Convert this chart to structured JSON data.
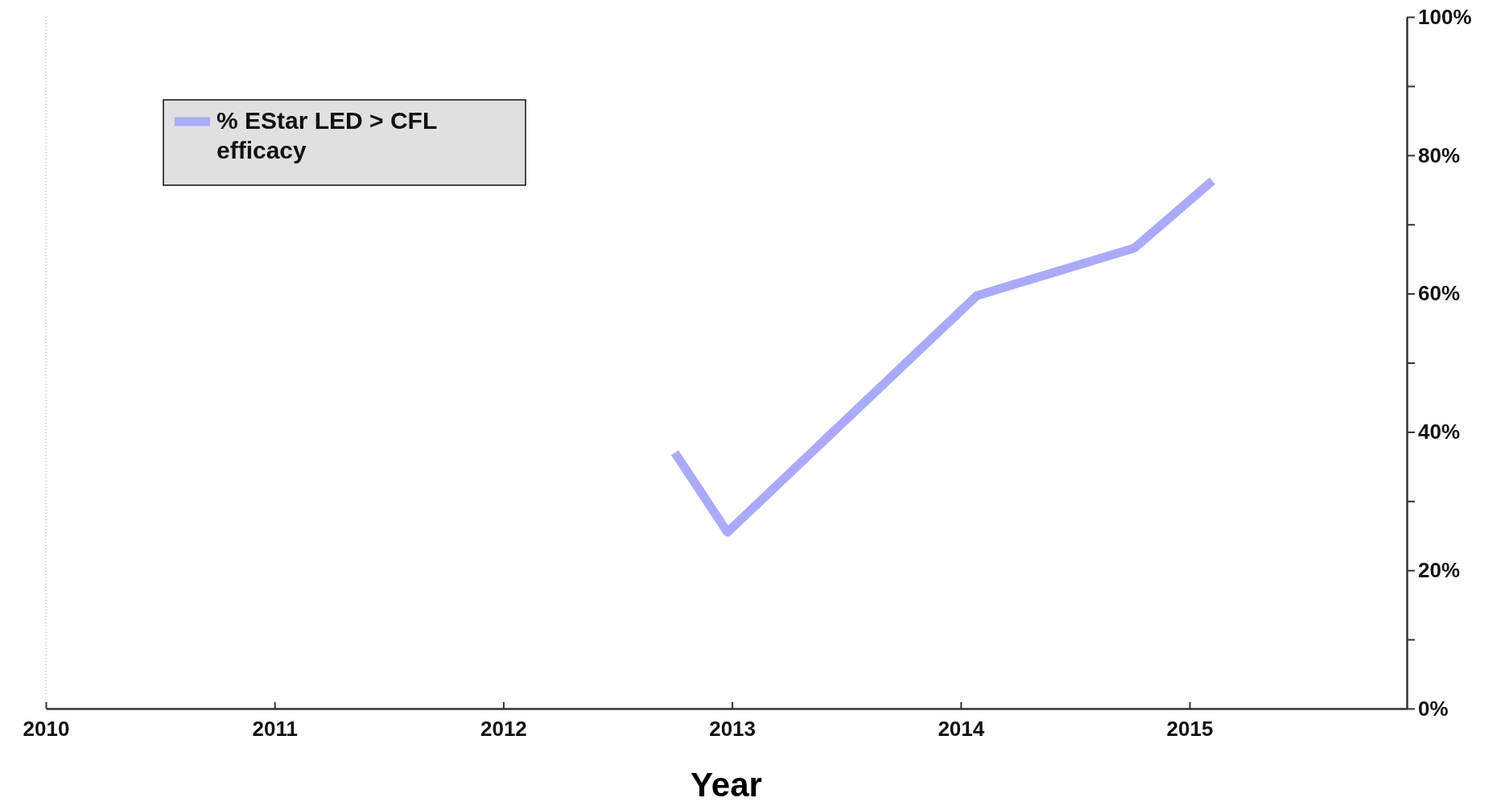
{
  "chart_data": {
    "type": "line",
    "xlabel": "Year",
    "x": [
      2012.75,
      2012.98,
      2014.07,
      2014.76,
      2015.1
    ],
    "series": [
      {
        "name": "% EStar LED > CFL efficacy",
        "color": "#aaaaf8",
        "values": [
          37,
          25.5,
          59.7,
          66.6,
          76.3
        ]
      }
    ],
    "xlim": [
      2010,
      2015.95
    ],
    "xticks": [
      2010,
      2011,
      2012,
      2013,
      2014,
      2015
    ],
    "ylim": [
      0,
      100
    ],
    "yticks": [
      {
        "value": 0,
        "label": "0%"
      },
      {
        "value": 10,
        "label": null
      },
      {
        "value": 20,
        "label": "20%"
      },
      {
        "value": 30,
        "label": null
      },
      {
        "value": 40,
        "label": "40%"
      },
      {
        "value": 50,
        "label": null
      },
      {
        "value": 60,
        "label": "60%"
      },
      {
        "value": 70,
        "label": null
      },
      {
        "value": 80,
        "label": "80%"
      },
      {
        "value": 90,
        "label": null
      },
      {
        "value": 100,
        "label": "100%"
      }
    ],
    "legend": "top left",
    "grid": false,
    "marker": "none",
    "line_style": "solid"
  }
}
